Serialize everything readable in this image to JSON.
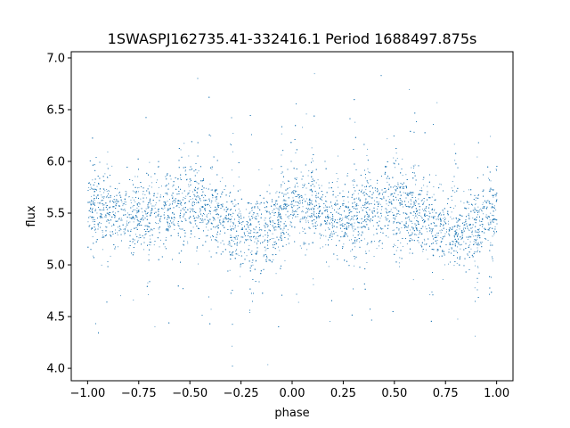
{
  "chart_data": {
    "type": "scatter",
    "title": "1SWASPJ162735.41-332416.1 Period 1688497.875s",
    "xlabel": "phase",
    "ylabel": "flux",
    "xlim": [
      -1.08,
      1.08
    ],
    "ylim": [
      3.88,
      7.06
    ],
    "xticks": [
      -1.0,
      -0.75,
      -0.5,
      -0.25,
      0.0,
      0.25,
      0.5,
      0.75,
      1.0
    ],
    "xtick_labels": [
      "−1.00",
      "−0.75",
      "−0.50",
      "−0.25",
      "0.00",
      "0.25",
      "0.50",
      "0.75",
      "1.00"
    ],
    "yticks": [
      4.0,
      4.5,
      5.0,
      5.5,
      6.0,
      6.5,
      7.0
    ],
    "ytick_labels": [
      "4.0",
      "4.5",
      "5.0",
      "5.5",
      "6.0",
      "6.5",
      "7.0"
    ],
    "grid": false,
    "marker_color": "#1f77b4",
    "series": [
      {
        "x_range": [
          -1.0,
          1.0
        ],
        "phase_profile": [
          {
            "phase": 0.0,
            "flux": 5.6
          },
          {
            "phase": 0.1,
            "flux": 5.55
          },
          {
            "phase": 0.2,
            "flux": 5.45
          },
          {
            "phase": 0.35,
            "flux": 5.5
          },
          {
            "phase": 0.5,
            "flux": 5.6
          },
          {
            "phase": 0.6,
            "flux": 5.5
          },
          {
            "phase": 0.7,
            "flux": 5.4
          },
          {
            "phase": 0.8,
            "flux": 5.28
          },
          {
            "phase": 0.9,
            "flux": 5.35
          },
          {
            "phase": 1.0,
            "flux": 5.6
          }
        ]
      }
    ]
  }
}
